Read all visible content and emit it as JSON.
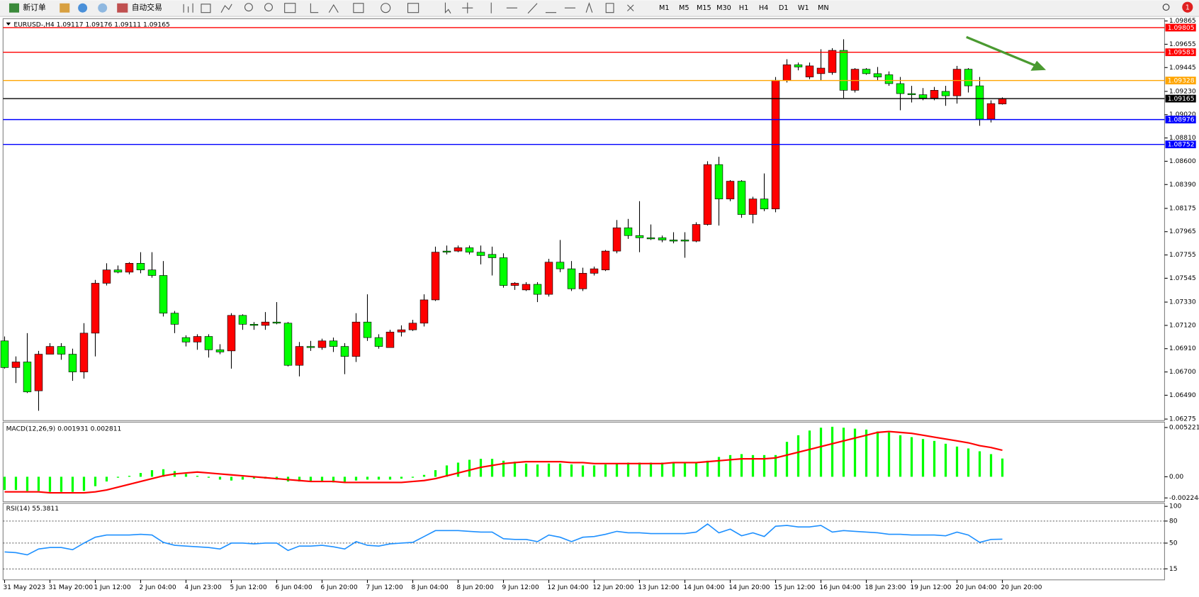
{
  "toolbar": {
    "new_order": "新订单",
    "auto_trading": "自动交易",
    "timeframes": [
      "M1",
      "M5",
      "M15",
      "M30",
      "H1",
      "H4",
      "D1",
      "W1",
      "MN"
    ],
    "notifications": 1
  },
  "chart_data": [
    {
      "type": "candlestick",
      "title": "EURUSD-,H4  1.09117 1.09176 1.09111 1.09165",
      "categories": [
        "31 May 2023",
        null,
        null,
        null,
        "31 May 20:00",
        null,
        null,
        null,
        "1 Jun 12:00",
        null,
        null,
        null,
        "2 Jun 04:00",
        null,
        null,
        null,
        "4 Jun 23:00",
        null,
        null,
        null,
        "5 Jun 12:00",
        null,
        null,
        null,
        "6 Jun 04:00",
        null,
        null,
        null,
        "6 Jun 20:00",
        null,
        null,
        null,
        "7 Jun 12:00",
        null,
        null,
        null,
        "8 Jun 04:00",
        null,
        null,
        null,
        "8 Jun 20:00",
        null,
        null,
        null,
        "9 Jun 12:00",
        null,
        null,
        null,
        "12 Jun 04:00",
        null,
        null,
        null,
        "12 Jun 20:00",
        null,
        null,
        null,
        "13 Jun 12:00",
        null,
        null,
        null,
        "14 Jun 04:00",
        null,
        null,
        null,
        "14 Jun 20:00",
        null,
        null,
        null,
        "15 Jun 12:00",
        null,
        null,
        null,
        "16 Jun 04:00",
        null,
        null,
        null,
        "18 Jun 23:00",
        null,
        null,
        null,
        "19 Jun 12:00",
        null,
        null,
        null,
        "20 Jun 04:00",
        null,
        null,
        null,
        "20 Jun 20:00"
      ],
      "open": [
        1.0698,
        1.0674,
        1.0679,
        1.0653,
        1.0686,
        1.0693,
        1.0686,
        1.067,
        1.0705,
        1.075,
        1.0762,
        1.076,
        1.0768,
        1.0762,
        1.0757,
        1.0723,
        1.0701,
        1.0697,
        1.0702,
        1.069,
        1.0689,
        1.0721,
        1.0713,
        1.0712,
        1.0715,
        1.0714,
        1.0676,
        1.0693,
        1.0692,
        1.0698,
        1.0693,
        1.0684,
        1.0715,
        1.0701,
        1.0692,
        1.0706,
        1.0708,
        1.0714,
        1.0735,
        1.0779,
        1.0779,
        1.0782,
        1.0778,
        1.0776,
        1.0773,
        1.0748,
        1.0744,
        1.0749,
        1.074,
        1.0769,
        1.0763,
        1.0745,
        1.0759,
        1.0762,
        1.0779,
        1.08,
        1.0793,
        1.0791,
        1.0791,
        1.0789,
        1.0789,
        1.0788,
        1.0803,
        1.0857,
        1.0826,
        1.0842,
        1.0812,
        1.0826,
        1.0817,
        1.0933,
        1.0947,
        1.0936,
        1.0939,
        1.094,
        1.096,
        1.0924,
        1.0943,
        1.0939,
        1.0938,
        1.093,
        1.0921,
        1.092,
        1.0917,
        1.0923,
        1.0919,
        1.0943,
        1.0928,
        1.0898,
        1.09117
      ],
      "high": [
        1.0702,
        1.0684,
        1.0705,
        1.0689,
        1.0696,
        1.0696,
        1.0691,
        1.0714,
        1.0753,
        1.0768,
        1.0766,
        1.0769,
        1.0778,
        1.0778,
        1.077,
        1.0725,
        1.0703,
        1.0704,
        1.0704,
        1.0695,
        1.0723,
        1.0722,
        1.0715,
        1.0724,
        1.0733,
        1.0715,
        1.0697,
        1.0698,
        1.07,
        1.0701,
        1.0696,
        1.0723,
        1.074,
        1.0704,
        1.0708,
        1.0712,
        1.0717,
        1.074,
        1.0783,
        1.0784,
        1.0784,
        1.0784,
        1.0784,
        1.0783,
        1.0777,
        1.0751,
        1.0751,
        1.0751,
        1.0772,
        1.0789,
        1.077,
        1.0764,
        1.0765,
        1.078,
        1.0807,
        1.0808,
        1.0824,
        1.0803,
        1.0793,
        1.0796,
        1.0796,
        1.0805,
        1.086,
        1.0864,
        1.0843,
        1.0843,
        1.0828,
        1.0849,
        1.0936,
        1.0952,
        1.0949,
        1.0949,
        1.0961,
        1.0962,
        1.097,
        1.0944,
        1.0944,
        1.0945,
        1.0941,
        1.0936,
        1.0928,
        1.0926,
        1.0927,
        1.0928,
        1.0946,
        1.0944,
        1.0936,
        1.0915,
        1.09176
      ],
      "low": [
        1.0673,
        1.066,
        1.0651,
        1.0635,
        1.0686,
        1.0681,
        1.0662,
        1.0664,
        1.0684,
        1.0748,
        1.0759,
        1.0758,
        1.0759,
        1.0755,
        1.072,
        1.0705,
        1.0693,
        1.069,
        1.0683,
        1.0686,
        1.0673,
        1.0708,
        1.0708,
        1.0708,
        1.0713,
        1.0675,
        1.0666,
        1.0689,
        1.069,
        1.0688,
        1.0668,
        1.0679,
        1.0698,
        1.0691,
        1.0692,
        1.0702,
        1.0707,
        1.0711,
        1.0734,
        1.0776,
        1.0778,
        1.0776,
        1.0767,
        1.0757,
        1.0746,
        1.0744,
        1.0743,
        1.0733,
        1.0738,
        1.076,
        1.0743,
        1.0743,
        1.0757,
        1.0761,
        1.0777,
        1.079,
        1.0778,
        1.0789,
        1.0787,
        1.0786,
        1.0773,
        1.0787,
        1.0802,
        1.0802,
        1.0824,
        1.0809,
        1.0804,
        1.0815,
        1.0814,
        1.0931,
        1.0942,
        1.0934,
        1.0933,
        1.0938,
        1.0917,
        1.0922,
        1.0938,
        1.0933,
        1.0928,
        1.0906,
        1.0913,
        1.0915,
        1.0915,
        1.091,
        1.0912,
        1.0922,
        1.0892,
        1.0895,
        1.09111
      ],
      "close": [
        1.0674,
        1.0679,
        1.0652,
        1.0686,
        1.0693,
        1.0686,
        1.067,
        1.0705,
        1.075,
        1.0762,
        1.076,
        1.0768,
        1.0762,
        1.0757,
        1.0723,
        1.0713,
        1.0697,
        1.0702,
        1.069,
        1.0688,
        1.0721,
        1.0713,
        1.0712,
        1.0715,
        1.0714,
        1.0676,
        1.0693,
        1.0692,
        1.0698,
        1.0693,
        1.0684,
        1.0715,
        1.0701,
        1.0693,
        1.0706,
        1.0708,
        1.0714,
        1.0735,
        1.0778,
        1.0778,
        1.0782,
        1.0778,
        1.0775,
        1.0773,
        1.0748,
        1.075,
        1.0749,
        1.074,
        1.0769,
        1.0763,
        1.0745,
        1.0759,
        1.0763,
        1.0779,
        1.08,
        1.0793,
        1.0791,
        1.079,
        1.0789,
        1.0788,
        1.0788,
        1.0803,
        1.0857,
        1.0826,
        1.0842,
        1.0812,
        1.0826,
        1.0817,
        1.0933,
        1.0947,
        1.0945,
        1.0946,
        1.0944,
        1.096,
        1.0924,
        1.0943,
        1.0939,
        1.0936,
        1.093,
        1.0921,
        1.092,
        1.0917,
        1.0924,
        1.0919,
        1.0943,
        1.0928,
        1.0898,
        1.0912,
        1.09165
      ],
      "up_color": "#ff0000",
      "down_color": "#00ff00",
      "ylim": [
        1.06275,
        1.09865
      ],
      "yticks": [
        1.09865,
        1.09655,
        1.09445,
        {
          "value": 1.0923,
          "label": "1.09230"
        },
        {
          "value": 1.0902,
          "label": "1.09020"
        },
        {
          "value": 1.0881,
          "label": "1.08810"
        },
        {
          "value": 1.086,
          "label": "1.08600"
        },
        {
          "value": 1.0839,
          "label": "1.08390"
        },
        1.08175,
        1.07965,
        1.07755,
        1.07545,
        {
          "value": 1.0733,
          "label": "1.07330"
        },
        {
          "value": 1.0712,
          "label": "1.07120"
        },
        {
          "value": 1.0691,
          "label": "1.06910"
        },
        {
          "value": 1.067,
          "label": "1.06700"
        },
        {
          "value": 1.0649,
          "label": "1.06490"
        },
        1.06275
      ],
      "hlines": [
        {
          "value": 1.09805,
          "color": "#ff0000"
        },
        {
          "value": 1.09583,
          "color": "#ff0000"
        },
        {
          "value": 1.09328,
          "color": "#ffa500"
        },
        {
          "value": 1.09165,
          "color": "#000000"
        },
        {
          "value": 1.08976,
          "color": "#0000ff"
        },
        {
          "value": 1.08752,
          "color": "#0000ff"
        }
      ]
    },
    {
      "type": "macd",
      "title": "MACD(12,26,9) 0.001931 0.002811",
      "histogram": {
        "color": "#00ff00",
        "values": [
          -0.0014,
          -0.0014,
          -0.0015,
          -0.0015,
          -0.0016,
          -0.0016,
          -0.0016,
          -0.0015,
          -0.001,
          -0.0005,
          -0.0001,
          0.0001,
          0.0004,
          0.0007,
          0.0008,
          0.0006,
          0.0003,
          0.0001,
          -0.0001,
          -0.0003,
          -0.0004,
          -0.0003,
          -0.0002,
          -0.0002,
          -0.0003,
          -0.0005,
          -0.0005,
          -0.0005,
          -0.0005,
          -0.0006,
          -0.0006,
          -0.0004,
          -0.0003,
          -0.0003,
          -0.0003,
          -0.0002,
          -0.0001,
          0.0002,
          0.0007,
          0.0012,
          0.0015,
          0.0018,
          0.0019,
          0.0019,
          0.0017,
          0.0016,
          0.0014,
          0.0013,
          0.0014,
          0.0014,
          0.0013,
          0.0012,
          0.0012,
          0.0013,
          0.0014,
          0.0015,
          0.0015,
          0.0015,
          0.0015,
          0.0015,
          0.0015,
          0.0015,
          0.0017,
          0.0021,
          0.0023,
          0.0024,
          0.0023,
          0.0023,
          0.0023,
          0.0037,
          0.0044,
          0.0049,
          0.0052,
          0.0053,
          0.0052,
          0.0051,
          0.005,
          0.0048,
          0.0047,
          0.0044,
          0.0042,
          0.004,
          0.0038,
          0.0035,
          0.0032,
          0.003,
          0.0027,
          0.0024,
          0.001931
        ]
      },
      "signal": {
        "color": "#ff0000",
        "values": [
          -0.0016,
          -0.0016,
          -0.0016,
          -0.0016,
          -0.0017,
          -0.0017,
          -0.0017,
          -0.0017,
          -0.0016,
          -0.0014,
          -0.0011,
          -0.0008,
          -0.0005,
          -0.0002,
          0.0001,
          0.0003,
          0.0004,
          0.0005,
          0.0004,
          0.0003,
          0.0002,
          0.0001,
          0,
          -0.0001,
          -0.0002,
          -0.0003,
          -0.0004,
          -0.0005,
          -0.0005,
          -0.0005,
          -0.0006,
          -0.0006,
          -0.0006,
          -0.0006,
          -0.0006,
          -0.0006,
          -0.0005,
          -0.0004,
          -0.0002,
          0.0001,
          0.0004,
          0.0007,
          0.001,
          0.0012,
          0.0014,
          0.0015,
          0.0016,
          0.0016,
          0.0016,
          0.0016,
          0.0015,
          0.0015,
          0.0014,
          0.0014,
          0.0014,
          0.0014,
          0.0014,
          0.0014,
          0.0014,
          0.0015,
          0.0015,
          0.0015,
          0.0016,
          0.0017,
          0.0018,
          0.0019,
          0.0019,
          0.0019,
          0.002,
          0.0023,
          0.0026,
          0.0029,
          0.0032,
          0.0035,
          0.0038,
          0.0041,
          0.0044,
          0.0047,
          0.0048,
          0.0047,
          0.0046,
          0.0044,
          0.0042,
          0.004,
          0.0038,
          0.0036,
          0.0033,
          0.0031,
          0.002811
        ]
      },
      "ylim": [
        -0.002244,
        0.005221
      ],
      "yticks": [
        0.005221,
        {
          "value": 0,
          "label": "0.00"
        },
        -0.002244
      ]
    },
    {
      "type": "line",
      "title": "RSI(14) 55.3811",
      "color": "#1e90ff",
      "values": [
        38,
        37,
        34,
        42,
        44,
        44,
        41,
        50,
        58,
        61,
        61,
        61,
        62,
        61,
        51,
        47,
        46,
        45,
        44,
        42,
        50,
        50,
        49,
        50,
        50,
        40,
        46,
        46,
        47,
        45,
        42,
        52,
        47,
        46,
        49,
        50,
        51,
        59,
        67,
        67,
        67,
        66,
        65,
        65,
        56,
        55,
        55,
        52,
        61,
        58,
        52,
        58,
        59,
        62,
        66,
        64,
        64,
        63,
        63,
        63,
        63,
        65,
        76,
        64,
        69,
        60,
        64,
        59,
        73,
        74,
        72,
        72,
        74,
        65,
        67,
        66,
        65,
        64,
        62,
        62,
        61,
        61,
        61,
        60,
        65,
        61,
        51,
        55,
        55.3811
      ],
      "ylim": [
        0,
        100
      ],
      "yticks": [
        100,
        80,
        50,
        15
      ]
    }
  ]
}
